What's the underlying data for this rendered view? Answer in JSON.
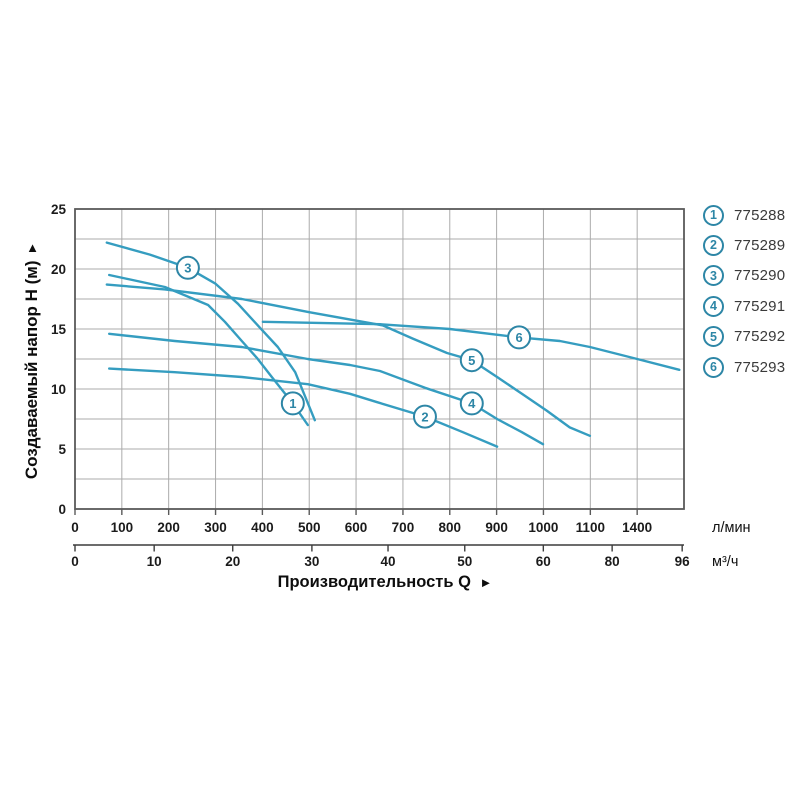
{
  "chart_data": {
    "type": "line",
    "title": "",
    "grid": true,
    "legend_position": "right",
    "colors": {
      "curve": "#359dc0",
      "marker_stroke": "#2d86a6",
      "grid": "#ababab",
      "border": "#5a5a5a",
      "tick_text": "#1b1b1b",
      "legend_text": "#3a3a3a"
    },
    "y_axis": {
      "title": "Создаваемый напор H (м)",
      "arrow": "▲",
      "range": [
        0,
        25
      ],
      "major_ticks": [
        0,
        5,
        10,
        15,
        20,
        25
      ],
      "minor_step": 2.5
    },
    "x_axis": {
      "title": "Производительность Q",
      "arrow": "►"
    },
    "x_axis_lmin": {
      "unit": "л/мин",
      "ticks": [
        {
          "v": "0",
          "f": 0.0
        },
        {
          "v": "100",
          "f": 0.0769
        },
        {
          "v": "200",
          "f": 0.1538
        },
        {
          "v": "300",
          "f": 0.2308
        },
        {
          "v": "400",
          "f": 0.3077
        },
        {
          "v": "500",
          "f": 0.3846
        },
        {
          "v": "600",
          "f": 0.4615
        },
        {
          "v": "700",
          "f": 0.5385
        },
        {
          "v": "800",
          "f": 0.6154
        },
        {
          "v": "900",
          "f": 0.6923
        },
        {
          "v": "1000",
          "f": 0.7692
        },
        {
          "v": "1100",
          "f": 0.8462
        },
        {
          "v": "1400",
          "f": 0.9231
        }
      ],
      "axis_end_value": 1600
    },
    "x_axis_m3h": {
      "unit": "м³/ч",
      "ticks": [
        {
          "v": "0",
          "f": 0.0
        },
        {
          "v": "10",
          "f": 0.13
        },
        {
          "v": "20",
          "f": 0.259
        },
        {
          "v": "30",
          "f": 0.389
        },
        {
          "v": "40",
          "f": 0.514
        },
        {
          "v": "50",
          "f": 0.64
        },
        {
          "v": "60",
          "f": 0.769
        },
        {
          "v": "80",
          "f": 0.882
        },
        {
          "v": "96",
          "f": 0.997
        }
      ]
    },
    "series": [
      {
        "num": "1",
        "model": "775288",
        "label_at": [
          465,
          8.8
        ],
        "points": [
          [
            73,
            19.5
          ],
          [
            192,
            18.5
          ],
          [
            284,
            17.0
          ],
          [
            320,
            15.6
          ],
          [
            356,
            14.0
          ],
          [
            388,
            12.6
          ],
          [
            420,
            11.0
          ],
          [
            465,
            8.8
          ],
          [
            497,
            7.0
          ]
        ]
      },
      {
        "num": "2",
        "model": "775289",
        "label_at": [
          747,
          7.7
        ],
        "points": [
          [
            73,
            11.7
          ],
          [
            213,
            11.4
          ],
          [
            356,
            11.0
          ],
          [
            497,
            10.4
          ],
          [
            587,
            9.6
          ],
          [
            645,
            8.9
          ],
          [
            747,
            7.7
          ],
          [
            828,
            6.4
          ],
          [
            901,
            5.2
          ]
        ]
      },
      {
        "num": "3",
        "model": "775290",
        "label_at": [
          241,
          20.1
        ],
        "points": [
          [
            68,
            22.2
          ],
          [
            160,
            21.2
          ],
          [
            241,
            20.1
          ],
          [
            299,
            18.8
          ],
          [
            348,
            17.1
          ],
          [
            395,
            15.1
          ],
          [
            433,
            13.5
          ],
          [
            470,
            11.4
          ],
          [
            512,
            7.4
          ]
        ]
      },
      {
        "num": "4",
        "model": "775291",
        "label_at": [
          847,
          8.8
        ],
        "points": [
          [
            73,
            14.6
          ],
          [
            213,
            14.0
          ],
          [
            356,
            13.5
          ],
          [
            497,
            12.5
          ],
          [
            587,
            12.0
          ],
          [
            651,
            11.5
          ],
          [
            747,
            10.1
          ],
          [
            847,
            8.8
          ],
          [
            901,
            7.5
          ],
          [
            954,
            6.4
          ],
          [
            999,
            5.4
          ]
        ]
      },
      {
        "num": "5",
        "model": "775292",
        "label_at": [
          847,
          12.4
        ],
        "points": [
          [
            68,
            18.7
          ],
          [
            192,
            18.3
          ],
          [
            356,
            17.5
          ],
          [
            500,
            16.4
          ],
          [
            657,
            15.3
          ],
          [
            721,
            14.2
          ],
          [
            794,
            13.0
          ],
          [
            847,
            12.4
          ],
          [
            901,
            11.0
          ],
          [
            954,
            9.6
          ],
          [
            1007,
            8.2
          ],
          [
            1056,
            6.8
          ],
          [
            1099,
            6.1
          ]
        ]
      },
      {
        "num": "6",
        "model": "775293",
        "label_at": [
          948,
          14.3
        ],
        "points": [
          [
            401,
            15.6
          ],
          [
            651,
            15.4
          ],
          [
            800,
            15.0
          ],
          [
            948,
            14.3
          ],
          [
            1035,
            14.0
          ],
          [
            1099,
            13.5
          ],
          [
            1400,
            12.5
          ],
          [
            1580,
            11.6
          ]
        ]
      }
    ]
  }
}
